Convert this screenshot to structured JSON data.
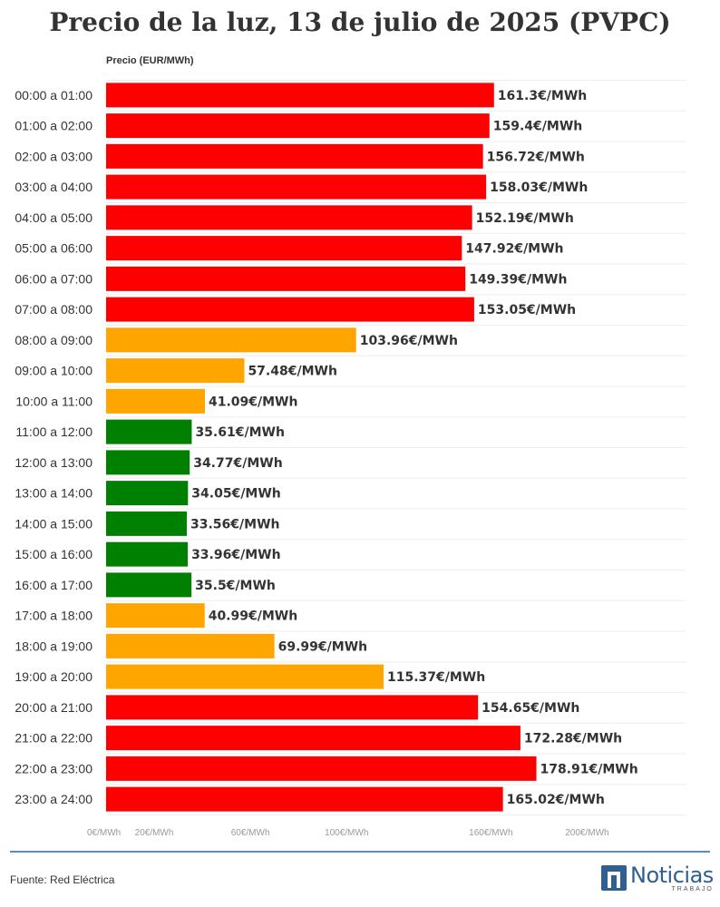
{
  "title": "Precio de la luz, 13 de julio de 2025 (PVPC)",
  "source": "Fuente: Red Eléctrica",
  "logo": {
    "word": "Noticias",
    "sub": "TRABAJO"
  },
  "colors": {
    "high": "#ff0000",
    "medium": "#ffa500",
    "low": "#008000",
    "text": "#333333",
    "grid": "#eeeeee",
    "axis_tick": "#999999",
    "rule": "#5b8cc1"
  },
  "chart_data": {
    "type": "bar",
    "orientation": "horizontal",
    "axis_title": "Precio (EUR/MWh)",
    "categories": [
      "00:00 a 01:00",
      "01:00 a 02:00",
      "02:00 a 03:00",
      "03:00 a 04:00",
      "04:00 a 05:00",
      "05:00 a 06:00",
      "06:00 a 07:00",
      "07:00 a 08:00",
      "08:00 a 09:00",
      "09:00 a 10:00",
      "10:00 a 11:00",
      "11:00 a 12:00",
      "12:00 a 13:00",
      "13:00 a 14:00",
      "14:00 a 15:00",
      "15:00 a 16:00",
      "16:00 a 17:00",
      "17:00 a 18:00",
      "18:00 a 19:00",
      "19:00 a 20:00",
      "20:00 a 21:00",
      "21:00 a 22:00",
      "22:00 a 23:00",
      "23:00 a 24:00"
    ],
    "values": [
      161.3,
      159.4,
      156.72,
      158.03,
      152.19,
      147.92,
      149.39,
      153.05,
      103.96,
      57.48,
      41.09,
      35.61,
      34.77,
      34.05,
      33.56,
      33.96,
      35.5,
      40.99,
      69.99,
      115.37,
      154.65,
      172.28,
      178.91,
      165.02
    ],
    "value_labels": [
      "161.3€/MWh",
      "159.4€/MWh",
      "156.72€/MWh",
      "158.03€/MWh",
      "152.19€/MWh",
      "147.92€/MWh",
      "149.39€/MWh",
      "153.05€/MWh",
      "103.96€/MWh",
      "57.48€/MWh",
      "41.09€/MWh",
      "35.61€/MWh",
      "34.77€/MWh",
      "34.05€/MWh",
      "33.56€/MWh",
      "33.96€/MWh",
      "35.5€/MWh",
      "40.99€/MWh",
      "69.99€/MWh",
      "115.37€/MWh",
      "154.65€/MWh",
      "172.28€/MWh",
      "178.91€/MWh",
      "165.02€/MWh"
    ],
    "bar_levels": [
      "high",
      "high",
      "high",
      "high",
      "high",
      "high",
      "high",
      "high",
      "medium",
      "medium",
      "medium",
      "low",
      "low",
      "low",
      "low",
      "low",
      "low",
      "medium",
      "medium",
      "medium",
      "high",
      "high",
      "high",
      "high"
    ],
    "x_ticks": [
      0,
      20,
      60,
      100,
      160,
      200
    ],
    "x_tick_labels": [
      "0€/MWh",
      "20€/MWh",
      "60€/MWh",
      "100€/MWh",
      "160€/MWh",
      "200€/MWh"
    ],
    "xlim": [
      0,
      230
    ],
    "grid": true
  }
}
